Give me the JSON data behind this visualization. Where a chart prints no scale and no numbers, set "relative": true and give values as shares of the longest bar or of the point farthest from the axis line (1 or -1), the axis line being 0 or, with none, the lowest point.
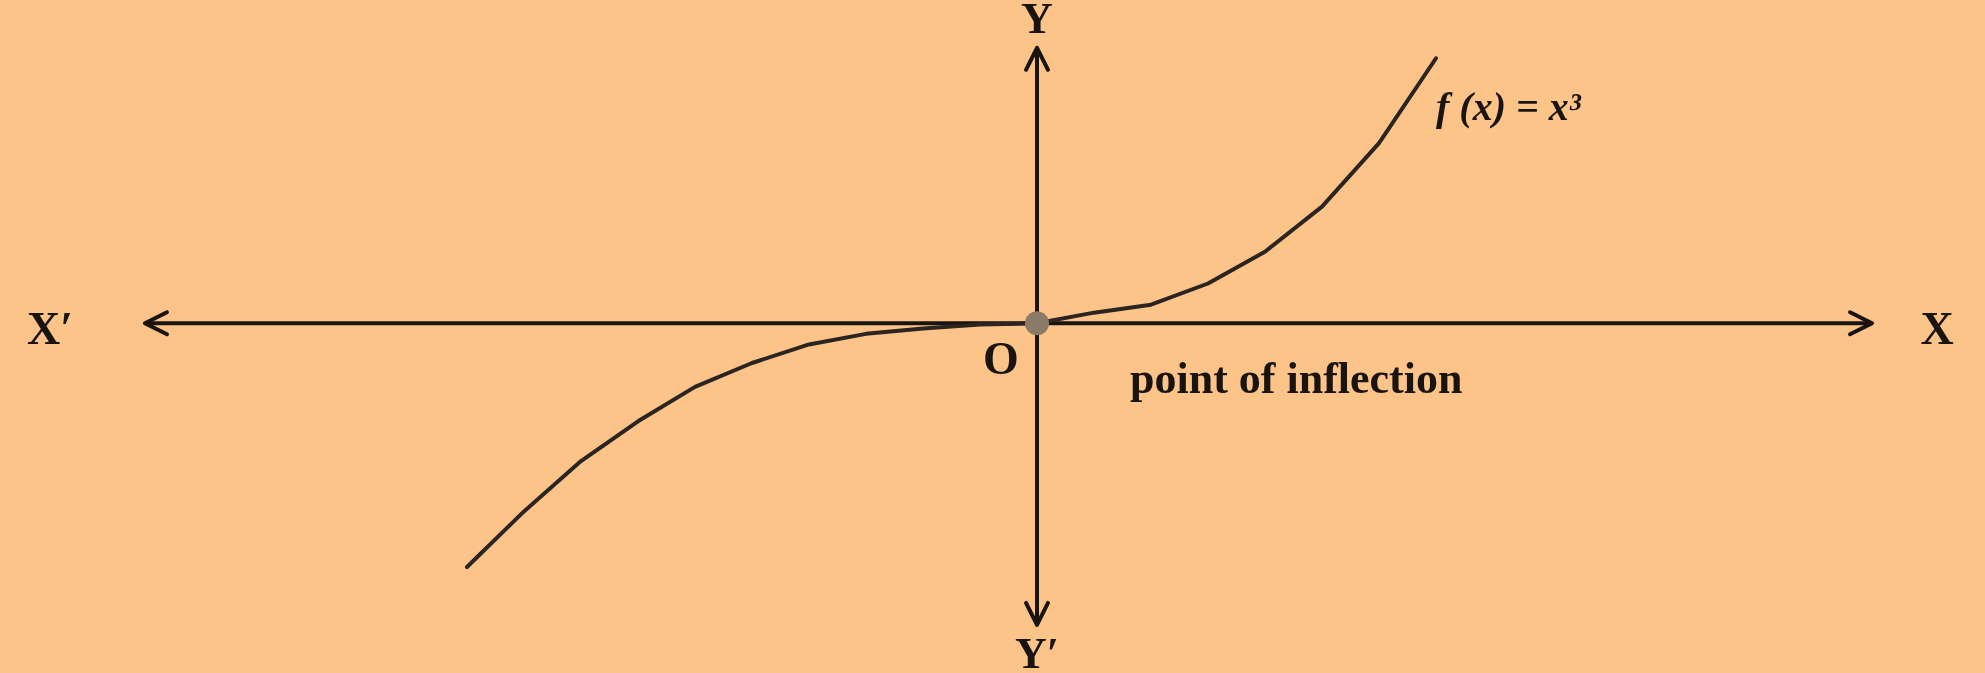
{
  "chart_data": {
    "type": "line",
    "relative": true,
    "categories": [
      null,
      null,
      null,
      null,
      null,
      null,
      null,
      null,
      null,
      null,
      null,
      null,
      null,
      null,
      null,
      null,
      null,
      null,
      null,
      null,
      null,
      null,
      null,
      null,
      null,
      null,
      null,
      null,
      null,
      null,
      null,
      null
    ],
    "series": [
      {
        "name": "f (x) = x³",
        "color": "#2b2420",
        "values": [
          null,
          null,
          null,
          null,
          null,
          null,
          -0.92,
          -0.71,
          -0.52,
          -0.37,
          -0.24,
          -0.15,
          -0.08,
          -0.04,
          -0.02,
          -0.005,
          0,
          0.04,
          0.07,
          0.15,
          0.27,
          0.44,
          0.68,
          1,
          null,
          null,
          null,
          null,
          null,
          null,
          null,
          null
        ]
      }
    ],
    "annotations": [
      "X′",
      "X",
      "Y",
      "Y′",
      "O",
      "point of inflection"
    ]
  }
}
